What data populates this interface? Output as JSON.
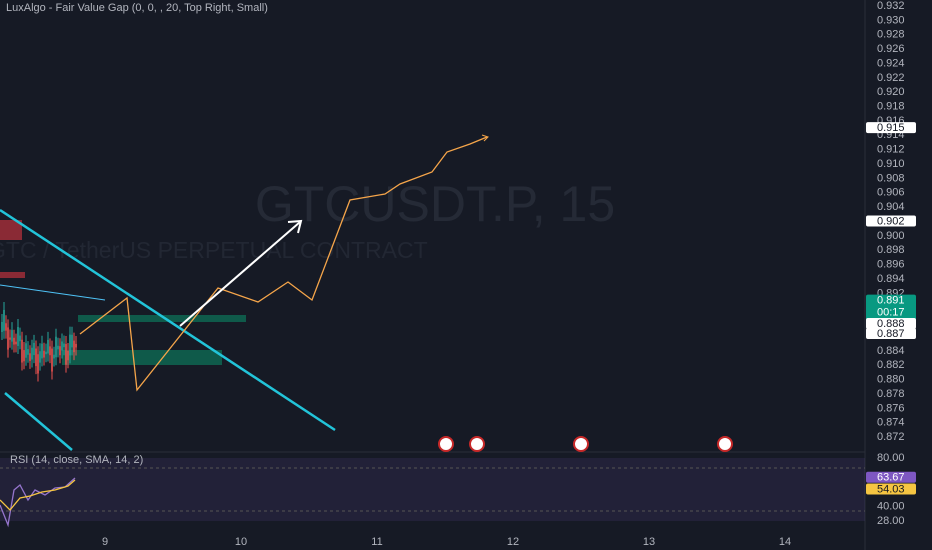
{
  "indicator_label": "LuxAlgo - Fair Value Gap (0, 0, , 20, Top Right, Small)",
  "watermark": {
    "symbol": "GTCUSDT.P, 15",
    "description": "GTC / TetherUS PERPETUAL CONTRACT"
  },
  "price_axis": {
    "labels": [
      "0.932",
      "0.930",
      "0.928",
      "0.926",
      "0.924",
      "0.922",
      "0.920",
      "0.918",
      "0.916",
      "0.914",
      "0.912",
      "0.910",
      "0.908",
      "0.906",
      "0.904",
      "0.900",
      "0.898",
      "0.896",
      "0.894",
      "0.892",
      "0.884",
      "0.882",
      "0.880",
      "0.878",
      "0.876",
      "0.874",
      "0.872"
    ],
    "badges": [
      {
        "text": "0.915",
        "style": "white"
      },
      {
        "text": "0.902",
        "style": "white"
      },
      {
        "text": "0.891",
        "style": "green",
        "sub": "00:17"
      },
      {
        "text": "0.888",
        "style": "white"
      },
      {
        "text": "0.887",
        "style": "white"
      }
    ]
  },
  "rsi": {
    "label": "RSI (14, close, SMA, 14, 2)",
    "axis_labels": [
      "80.00",
      "40.00",
      "28.00"
    ],
    "badges": [
      {
        "text": "63.67",
        "style": "purple"
      },
      {
        "text": "54.03",
        "style": "yellow"
      }
    ]
  },
  "time_axis": {
    "labels": [
      "9",
      "10",
      "11",
      "12",
      "13",
      "14"
    ]
  }
}
